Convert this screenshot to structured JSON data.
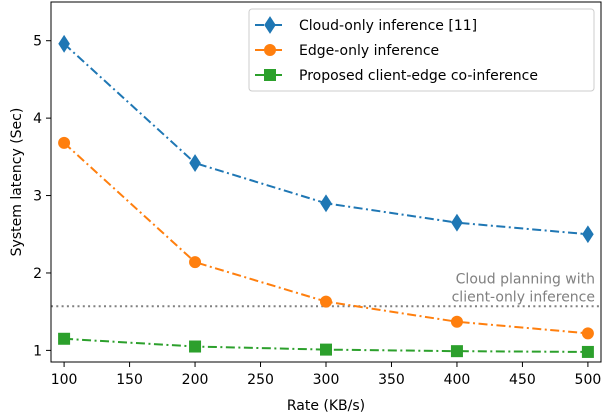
{
  "chart_data": {
    "type": "line",
    "title": "",
    "xlabel": "Rate (KB/s)",
    "ylabel": "System latency (Sec)",
    "xlim": [
      90,
      510
    ],
    "ylim": [
      0.85,
      5.5
    ],
    "xticks": [
      100,
      150,
      200,
      250,
      300,
      350,
      400,
      450,
      500
    ],
    "yticks": [
      1,
      2,
      3,
      4,
      5
    ],
    "grid": false,
    "legend_position": "top-right",
    "series": [
      {
        "name": "Cloud-only inference [11]",
        "color": "#1f77b4",
        "marker": "thin-diamond",
        "line_style": "dash-dot",
        "x": [
          100,
          200,
          300,
          400,
          500
        ],
        "y": [
          4.96,
          3.42,
          2.9,
          2.65,
          2.5
        ]
      },
      {
        "name": "Edge-only inference",
        "color": "#ff7f0e",
        "marker": "circle",
        "line_style": "dash-dot",
        "x": [
          100,
          200,
          300,
          400,
          500
        ],
        "y": [
          3.68,
          2.14,
          1.63,
          1.37,
          1.22
        ]
      },
      {
        "name": "Proposed client-edge co-inference",
        "color": "#2ca02c",
        "marker": "square",
        "line_style": "dash-dot",
        "x": [
          100,
          200,
          300,
          400,
          500
        ],
        "y": [
          1.15,
          1.05,
          1.01,
          0.99,
          0.98
        ]
      }
    ],
    "reference_line": {
      "y": 1.57,
      "color": "#808080",
      "line_style": "dotted",
      "label_lines": [
        "Cloud planning with",
        "client-only inference"
      ]
    }
  }
}
